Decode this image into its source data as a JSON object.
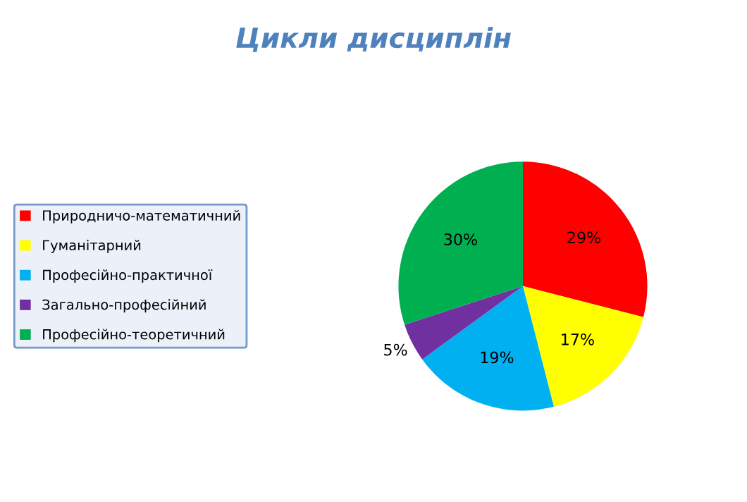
{
  "chart_data": {
    "type": "pie",
    "title": "Цикли дисциплін",
    "categories": [
      "Природничо-математичний",
      "Гуманітарний",
      "Професійно-практичної",
      "Загально-професійний",
      "Професійно-теоретичний"
    ],
    "values": [
      29,
      17,
      19,
      5,
      30
    ],
    "colors": [
      "#ff0000",
      "#ffff00",
      "#00b0f0",
      "#7030a0",
      "#00b050"
    ],
    "value_labels": [
      "29%",
      "17%",
      "19%",
      "5%",
      "30%"
    ],
    "legend": "left"
  }
}
